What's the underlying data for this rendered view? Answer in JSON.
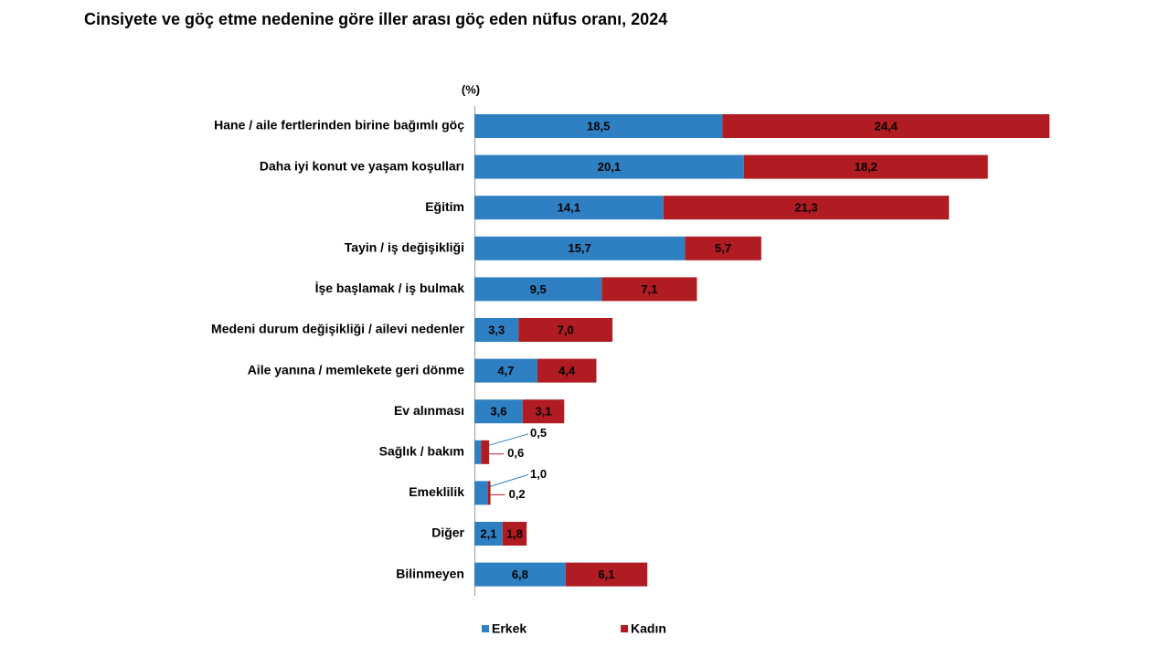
{
  "chart_data": {
    "type": "stacked-bar-horizontal",
    "title": "Cinsiyete ve göç etme nedenine göre iller arası göç eden nüfus oranı, 2024",
    "unit_label": "(%)",
    "categories": [
      "Hane / aile fertlerinden birine bağımlı göç",
      "Daha iyi konut ve yaşam koşulları",
      "Eğitim",
      "Tayin / iş değişikliği",
      "İşe başlamak / iş bulmak",
      "Medeni durum değişikliği / ailevi nedenler",
      "Aile yanına / memlekete geri dönme",
      "Ev alınması",
      "Sağlık / bakım",
      "Emeklilik",
      "Diğer",
      "Bilinmeyen"
    ],
    "series": [
      {
        "name": "Erkek",
        "color": "#2f80c3",
        "values": [
          18.5,
          20.1,
          14.1,
          15.7,
          9.5,
          3.3,
          4.7,
          3.6,
          0.5,
          1.0,
          2.1,
          6.8
        ],
        "value_labels": [
          "18,5",
          "20,1",
          "14,1",
          "15,7",
          "9,5",
          "3,3",
          "4,7",
          "3,6",
          "0,5",
          "1,0",
          "2,1",
          "6,8"
        ]
      },
      {
        "name": "Kadın",
        "color": "#b01c22",
        "values": [
          24.4,
          18.2,
          21.3,
          5.7,
          7.1,
          7.0,
          4.4,
          3.1,
          0.6,
          0.2,
          1.8,
          6.1
        ],
        "value_labels": [
          "24,4",
          "18,2",
          "21,3",
          "5,7",
          "7,1",
          "7,0",
          "4,4",
          "3,1",
          "0,6",
          "0,2",
          "1,8",
          "6,1"
        ]
      }
    ],
    "xlim": [
      0,
      48
    ]
  }
}
